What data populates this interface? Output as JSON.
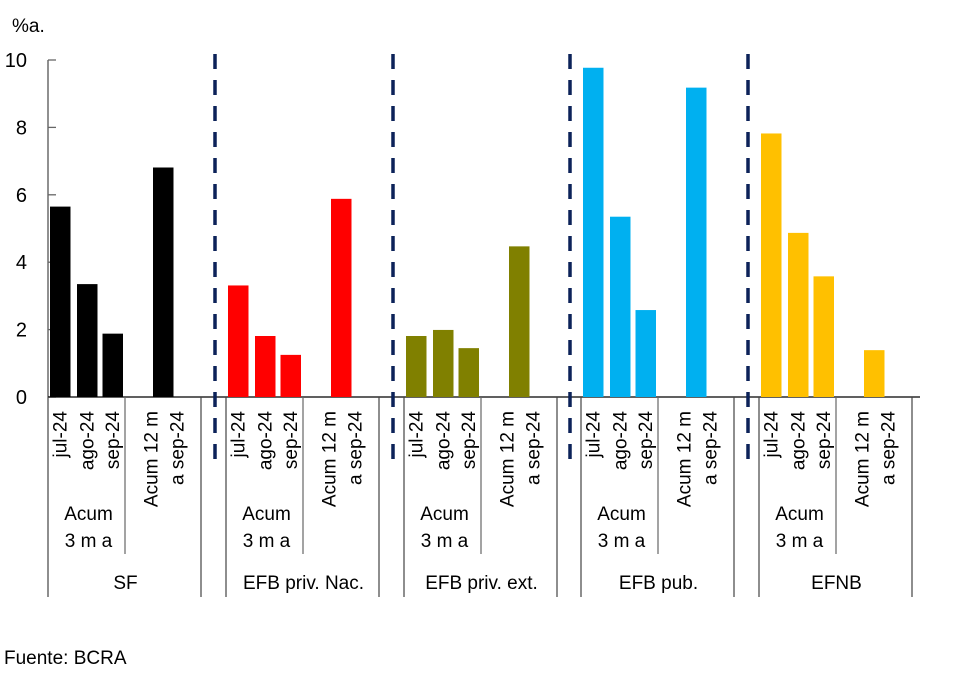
{
  "chart_data": {
    "type": "bar",
    "title": "",
    "ylabel": "%a.",
    "xlabel": "",
    "ylim": [
      0,
      10
    ],
    "yticks": [
      0,
      2,
      4,
      6,
      8,
      10
    ],
    "grid": false,
    "legend": "none",
    "groups": [
      {
        "name": "SF",
        "color": "#000000",
        "subgroups": [
          {
            "label_lines": [
              "Acum",
              "3 m a"
            ],
            "categories": [
              "jul-24",
              "ago-24",
              "sep-24"
            ],
            "values": [
              5.65,
              3.35,
              1.88
            ]
          },
          {
            "label_lines": [
              "Acum 12 m",
              "a sep-24"
            ],
            "categories": [
              "Acum 12 m a sep-24"
            ],
            "values": [
              6.81
            ]
          }
        ]
      },
      {
        "name": "EFB priv. Nac.",
        "color": "#ff0000",
        "subgroups": [
          {
            "label_lines": [
              "Acum",
              "3 m a"
            ],
            "categories": [
              "jul-24",
              "ago-24",
              "sep-24"
            ],
            "values": [
              3.31,
              1.81,
              1.25
            ]
          },
          {
            "label_lines": [
              "Acum 12 m",
              "a sep-24"
            ],
            "categories": [
              "Acum 12 m a sep-24"
            ],
            "values": [
              5.88
            ]
          }
        ]
      },
      {
        "name": "EFB priv. ext.",
        "color": "#808000",
        "subgroups": [
          {
            "label_lines": [
              "Acum",
              "3 m a"
            ],
            "categories": [
              "jul-24",
              "ago-24",
              "sep-24"
            ],
            "values": [
              1.81,
              1.99,
              1.45
            ]
          },
          {
            "label_lines": [
              "Acum 12 m",
              "a sep-24"
            ],
            "categories": [
              "Acum 12 m a sep-24"
            ],
            "values": [
              4.47
            ]
          }
        ]
      },
      {
        "name": "EFB pub.",
        "color": "#00b0f0",
        "subgroups": [
          {
            "label_lines": [
              "Acum",
              "3 m a"
            ],
            "categories": [
              "jul-24",
              "ago-24",
              "sep-24"
            ],
            "values": [
              9.77,
              5.35,
              2.58
            ]
          },
          {
            "label_lines": [
              "Acum 12 m",
              "a sep-24"
            ],
            "categories": [
              "Acum 12 m a sep-24"
            ],
            "values": [
              9.18
            ]
          }
        ]
      },
      {
        "name": "EFNB",
        "color": "#ffc000",
        "subgroups": [
          {
            "label_lines": [
              "Acum",
              "3 m a"
            ],
            "categories": [
              "jul-24",
              "ago-24",
              "sep-24"
            ],
            "values": [
              7.82,
              4.87,
              3.58
            ]
          },
          {
            "label_lines": [
              "Acum 12 m",
              "a sep-24"
            ],
            "categories": [
              "Acum 12 m a sep-24"
            ],
            "values": [
              1.39
            ]
          }
        ]
      }
    ],
    "separator_color": "#0c2259"
  },
  "source": "Fuente: BCRA"
}
